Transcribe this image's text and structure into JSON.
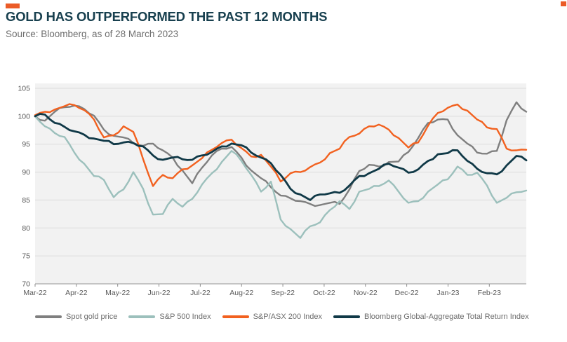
{
  "header": {
    "accent_color": "#EB5B27",
    "title": "GOLD HAS OUTPERFORMED THE PAST 12 MONTHS",
    "source": "Source: Bloomberg, as of 28 March 2023"
  },
  "chart_data": {
    "type": "line",
    "title": "GOLD HAS OUTPERFORMED THE PAST 12 MONTHS",
    "xlabel": "",
    "ylabel": "",
    "ylim": [
      70,
      105
    ],
    "yticks": [
      70,
      75,
      80,
      85,
      90,
      95,
      100,
      105
    ],
    "x_tick_labels": [
      "Mar-22",
      "Apr-22",
      "May-22",
      "Jun-22",
      "Jul-22",
      "Aug-22",
      "Sep-22",
      "Oct-22",
      "Nov-22",
      "Dec-22",
      "Jan-23",
      "Feb-23"
    ],
    "x_range_note": "values indexed to 100 at start, sampled ~weekly from Mar-22 to 28-Mar-23",
    "grid": true,
    "plot_background": "#F2F2F2",
    "gridline_color": "#DCDCDC",
    "axis_line_color": "#A8A8A8",
    "tick_label_color": "#595959",
    "legend_position": "bottom",
    "series": [
      {
        "name": "Spot gold price",
        "color": "#7F7F7F",
        "values": [
          100.0,
          99.2,
          100.8,
          101.6,
          101.9,
          101.3,
          100.1,
          97.6,
          96.5,
          96.2,
          95.2,
          94.7,
          95.1,
          93.9,
          92.6,
          90.3,
          88.0,
          90.8,
          93.0,
          94.2,
          94.5,
          92.6,
          90.3,
          88.9,
          87.3,
          85.8,
          85.3,
          84.8,
          84.3,
          84.1,
          84.5,
          84.3,
          86.9,
          90.2,
          91.3,
          91.0,
          91.8,
          91.9,
          93.6,
          96.1,
          98.8,
          99.4,
          99.4,
          96.6,
          95.1,
          93.5,
          93.3,
          93.8,
          99.3,
          102.5,
          100.8
        ]
      },
      {
        "name": "S&P 500 Index",
        "color": "#9CC0BC",
        "values": [
          100.0,
          98.2,
          97.0,
          96.3,
          93.5,
          91.5,
          89.3,
          88.6,
          85.5,
          86.9,
          90.0,
          87.0,
          82.4,
          82.5,
          85.2,
          83.8,
          85.2,
          87.8,
          89.8,
          91.8,
          93.8,
          92.0,
          89.5,
          86.5,
          88.3,
          81.5,
          79.8,
          78.2,
          80.3,
          81.0,
          83.2,
          84.8,
          83.4,
          86.5,
          87.0,
          87.5,
          88.5,
          86.5,
          84.5,
          84.8,
          86.5,
          87.8,
          88.7,
          91.0,
          89.5,
          89.9,
          87.6,
          84.5,
          85.4,
          86.4,
          86.7
        ]
      },
      {
        "name": "S&P/ASX 200 Index",
        "color": "#F2611F",
        "values": [
          100.2,
          100.8,
          101.2,
          101.8,
          102.0,
          101.1,
          99.4,
          96.2,
          96.6,
          98.2,
          97.2,
          92.3,
          87.5,
          89.5,
          88.9,
          90.5,
          91.2,
          92.5,
          94.0,
          95.2,
          95.8,
          94.3,
          92.8,
          93.1,
          91.0,
          88.3,
          89.8,
          90.0,
          90.9,
          91.7,
          93.4,
          94.2,
          96.3,
          96.9,
          98.2,
          98.5,
          97.6,
          96.1,
          94.4,
          95.3,
          98.3,
          100.6,
          101.5,
          102.1,
          101.0,
          99.4,
          98.0,
          97.7,
          94.2,
          93.9,
          94.0
        ]
      },
      {
        "name": "Bloomberg Global-Aggregate Total Return Index",
        "color": "#103947",
        "values": [
          100.0,
          100.3,
          98.8,
          98.1,
          97.3,
          96.7,
          96.0,
          95.6,
          95.0,
          95.3,
          95.2,
          94.6,
          93.0,
          92.2,
          92.6,
          92.3,
          92.2,
          93.0,
          93.6,
          94.6,
          95.1,
          94.8,
          93.5,
          92.6,
          91.6,
          89.5,
          87.0,
          86.0,
          85.0,
          86.0,
          86.2,
          86.3,
          87.6,
          89.3,
          89.8,
          90.6,
          91.5,
          90.8,
          89.9,
          90.5,
          92.0,
          93.2,
          93.4,
          93.9,
          92.0,
          90.6,
          89.8,
          89.6,
          91.2,
          92.9,
          92.1
        ]
      }
    ]
  }
}
